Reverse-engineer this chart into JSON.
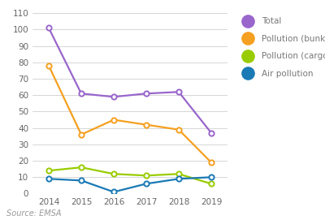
{
  "years": [
    2014,
    2015,
    2016,
    2017,
    2018,
    2019
  ],
  "total": [
    101,
    61,
    59,
    61,
    62,
    37
  ],
  "bunkers": [
    78,
    36,
    45,
    42,
    39,
    19
  ],
  "cargo": [
    14,
    16,
    12,
    11,
    12,
    6
  ],
  "air": [
    9,
    8,
    1,
    6,
    9,
    10
  ],
  "total_color": "#9966cc",
  "bunkers_color": "#f5a020",
  "cargo_color": "#99cc00",
  "air_color": "#1a7ab5",
  "ylim": [
    0,
    110
  ],
  "yticks": [
    0,
    10,
    20,
    30,
    40,
    50,
    60,
    70,
    80,
    90,
    100,
    110
  ],
  "source_text": "Source: EMSA",
  "legend_labels": [
    "Total",
    "Pollution (bunkers)",
    "Pollution (cargo)",
    "Air pollution"
  ],
  "background_color": "#ffffff",
  "grid_color": "#d0d0d0"
}
